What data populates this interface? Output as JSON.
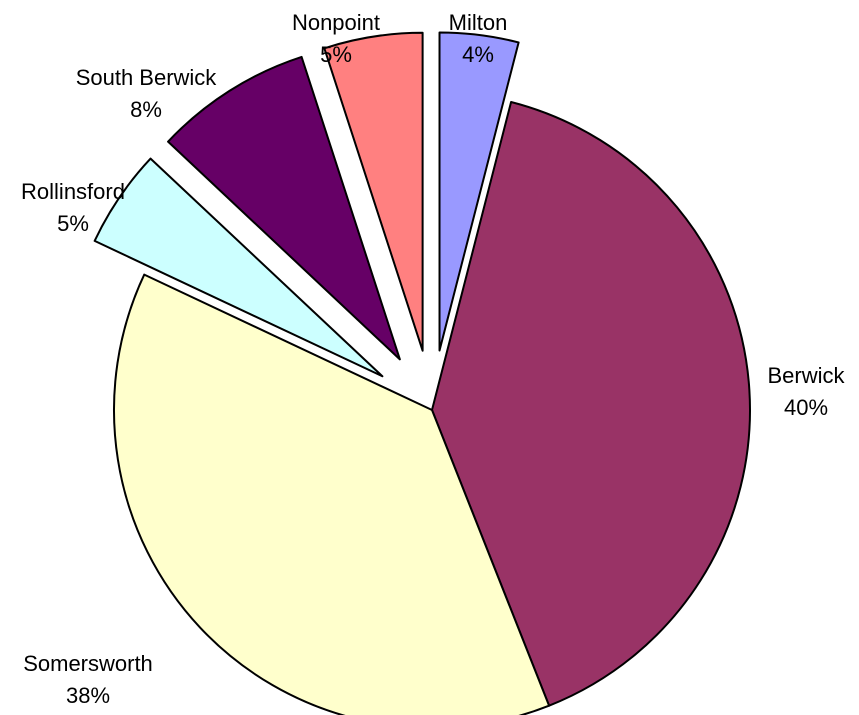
{
  "chart_data": {
    "type": "pie",
    "categories": [
      "Milton",
      "Berwick",
      "Somersworth",
      "Rollinsford",
      "South Berwick",
      "Nonpoint"
    ],
    "values": [
      4,
      40,
      38,
      5,
      8,
      5
    ],
    "labels": [
      {
        "name": "Milton",
        "pct": "4%"
      },
      {
        "name": "Berwick",
        "pct": "40%"
      },
      {
        "name": "Somersworth",
        "pct": "38%"
      },
      {
        "name": "Rollinsford",
        "pct": "5%"
      },
      {
        "name": "South Berwick",
        "pct": "8%"
      },
      {
        "name": "Nonpoint",
        "pct": "5%"
      }
    ],
    "colors": [
      "#9999ff",
      "#993366",
      "#ffffcc",
      "#ccffff",
      "#660066",
      "#ff8080"
    ],
    "exploded": [
      true,
      false,
      false,
      true,
      true,
      true
    ],
    "legend": "none"
  }
}
